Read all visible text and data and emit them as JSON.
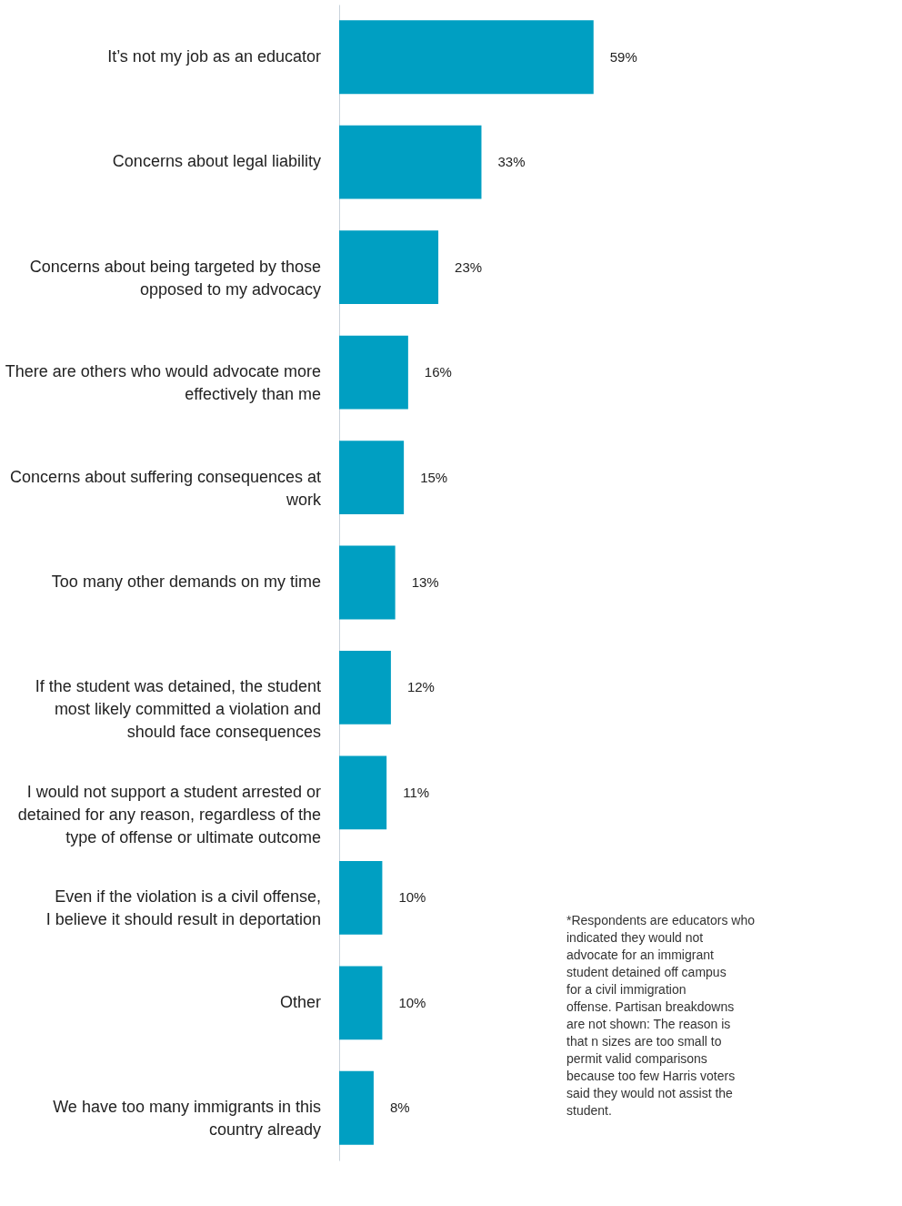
{
  "chart_data": {
    "type": "bar",
    "orientation": "horizontal",
    "grid": false,
    "categories": [
      "It’s not my job as an educator",
      "Concerns about legal liability",
      "Concerns about being targeted by those opposed to my advocacy",
      "There are others who would advocate more effectively than me",
      "Concerns about suffering consequences at work",
      "Too many other demands on my time",
      "If the student was detained, the student most likely committed a violation and should face consequences",
      "I would not support a student arrested or detained for any reason, regardless of the type of offense or ultimate outcome",
      "Even if the violation is a civil offense, I believe it should result in deportation",
      "Other",
      "We have too many immigrants in this country already"
    ],
    "values": [
      59,
      33,
      23,
      16,
      15,
      13,
      12,
      11,
      10,
      10,
      8
    ],
    "color": "#009fc2",
    "value_labels": [
      "59%",
      "33%",
      "23%",
      "16%",
      "15%",
      "13%",
      "12%",
      "11%",
      "10%",
      "10%",
      "8%"
    ],
    "annotations": [
      "*Respondents are educators who indicated they would not advocate for an immigrant student detained off campus for a civil immigration offense. Partisan breakdowns are not shown: The reason is that n sizes are too small to permit valid comparisons because too few Harris voters said they would not assist the student."
    ]
  }
}
